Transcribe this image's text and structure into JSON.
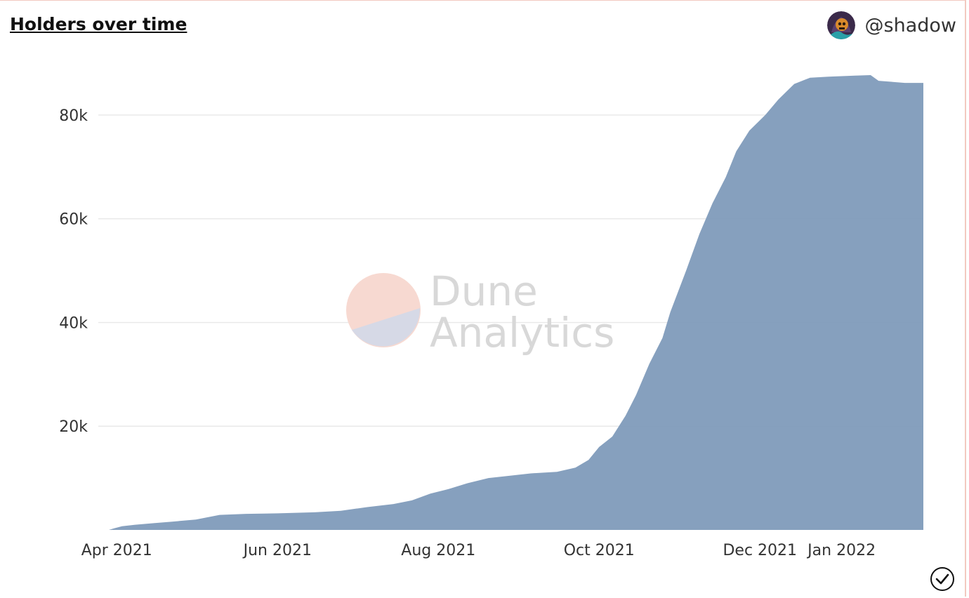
{
  "header": {
    "title": "Holders over time",
    "author": "@shadow"
  },
  "watermark": {
    "line1": "Dune",
    "line2": "Analytics"
  },
  "colors": {
    "area": "#7f9bba",
    "grid": "#e9e9e9",
    "watermark_pink": "#f7d9d1",
    "watermark_lavender": "#d6d9e6"
  },
  "icons": {
    "avatar": "skull-avatar-icon",
    "status": "checkmark-circle-icon"
  },
  "chart_data": {
    "type": "area",
    "title": "Holders over time",
    "xlabel": "",
    "ylabel": "",
    "ylim": [
      0,
      90000
    ],
    "xlim": [
      "2021-03-25",
      "2022-02-01"
    ],
    "y_ticks": [
      {
        "value": 20000,
        "label": "20k"
      },
      {
        "value": 40000,
        "label": "40k"
      },
      {
        "value": 60000,
        "label": "60k"
      },
      {
        "value": 80000,
        "label": "80k"
      }
    ],
    "x_ticks": [
      {
        "date": "2021-04-01",
        "label": "Apr 2021"
      },
      {
        "date": "2021-06-01",
        "label": "Jun 2021"
      },
      {
        "date": "2021-08-01",
        "label": "Aug 2021"
      },
      {
        "date": "2021-10-01",
        "label": "Oct 2021"
      },
      {
        "date": "2021-12-01",
        "label": "Dec 2021"
      },
      {
        "date": "2022-01-01",
        "label": "Jan 2022"
      }
    ],
    "grid": true,
    "legend": "none",
    "series": [
      {
        "points": [
          [
            "2021-03-29",
            0
          ],
          [
            "2021-03-31",
            300
          ],
          [
            "2021-04-03",
            700
          ],
          [
            "2021-04-08",
            1000
          ],
          [
            "2021-04-15",
            1300
          ],
          [
            "2021-04-22",
            1600
          ],
          [
            "2021-05-01",
            2000
          ],
          [
            "2021-05-10",
            2900
          ],
          [
            "2021-05-20",
            3100
          ],
          [
            "2021-06-01",
            3200
          ],
          [
            "2021-06-15",
            3400
          ],
          [
            "2021-06-25",
            3700
          ],
          [
            "2021-07-05",
            4400
          ],
          [
            "2021-07-15",
            5000
          ],
          [
            "2021-07-22",
            5700
          ],
          [
            "2021-07-29",
            7000
          ],
          [
            "2021-08-05",
            7900
          ],
          [
            "2021-08-12",
            9000
          ],
          [
            "2021-08-20",
            10000
          ],
          [
            "2021-08-27",
            10400
          ],
          [
            "2021-09-05",
            10900
          ],
          [
            "2021-09-15",
            11200
          ],
          [
            "2021-09-22",
            12000
          ],
          [
            "2021-09-27",
            13500
          ],
          [
            "2021-10-01",
            16000
          ],
          [
            "2021-10-06",
            18000
          ],
          [
            "2021-10-11",
            22000
          ],
          [
            "2021-10-15",
            26000
          ],
          [
            "2021-10-20",
            32000
          ],
          [
            "2021-10-25",
            37000
          ],
          [
            "2021-10-28",
            42000
          ],
          [
            "2021-11-03",
            50000
          ],
          [
            "2021-11-08",
            57000
          ],
          [
            "2021-11-13",
            63000
          ],
          [
            "2021-11-18",
            68000
          ],
          [
            "2021-11-22",
            73000
          ],
          [
            "2021-11-27",
            77000
          ],
          [
            "2021-12-03",
            80000
          ],
          [
            "2021-12-08",
            83000
          ],
          [
            "2021-12-14",
            86000
          ],
          [
            "2021-12-20",
            87200
          ],
          [
            "2021-12-27",
            87400
          ],
          [
            "2022-01-06",
            87600
          ],
          [
            "2022-01-12",
            87700
          ],
          [
            "2022-01-15",
            86600
          ],
          [
            "2022-01-25",
            86200
          ]
        ]
      }
    ]
  }
}
